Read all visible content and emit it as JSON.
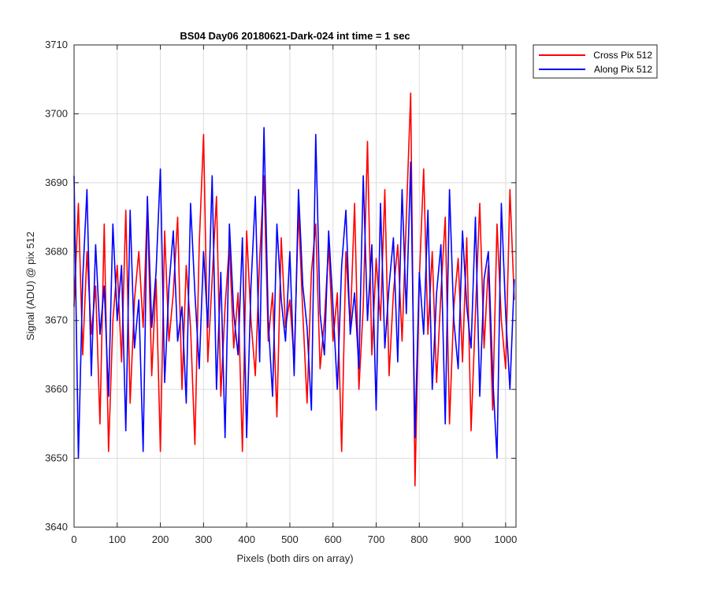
{
  "chart_data": {
    "type": "line",
    "title": "BS04 Day06 20180621-Dark-024 int time = 1 sec",
    "xlabel": "Pixels (both dirs on array)",
    "ylabel": "Signal (ADU) @ pix 512",
    "xlim": [
      0,
      1024
    ],
    "ylim": [
      3640,
      3710
    ],
    "xticks": [
      0,
      100,
      200,
      300,
      400,
      500,
      600,
      700,
      800,
      900,
      1000
    ],
    "yticks": [
      3640,
      3650,
      3660,
      3670,
      3680,
      3690,
      3700,
      3710
    ],
    "grid": true,
    "legend_position": "outside-top-right",
    "series": [
      {
        "name": "Cross Pix 512",
        "color": "#ff0000",
        "x": [
          0,
          10,
          20,
          30,
          40,
          50,
          60,
          70,
          80,
          90,
          100,
          110,
          120,
          130,
          140,
          150,
          160,
          170,
          180,
          190,
          200,
          210,
          220,
          230,
          240,
          250,
          260,
          270,
          280,
          290,
          300,
          310,
          320,
          330,
          340,
          350,
          360,
          370,
          380,
          390,
          400,
          410,
          420,
          430,
          440,
          450,
          460,
          470,
          480,
          490,
          500,
          510,
          520,
          530,
          540,
          550,
          560,
          570,
          580,
          590,
          600,
          610,
          620,
          630,
          640,
          650,
          660,
          670,
          680,
          690,
          700,
          710,
          720,
          730,
          740,
          750,
          760,
          770,
          780,
          790,
          800,
          810,
          820,
          830,
          840,
          850,
          860,
          870,
          880,
          890,
          900,
          910,
          920,
          930,
          940,
          950,
          960,
          970,
          980,
          990,
          1000,
          1010,
          1020
        ],
        "y": [
          3672,
          3687,
          3665,
          3680,
          3668,
          3675,
          3655,
          3684,
          3651,
          3670,
          3678,
          3664,
          3686,
          3658,
          3673,
          3680,
          3669,
          3687,
          3662,
          3676,
          3651,
          3683,
          3667,
          3674,
          3685,
          3660,
          3678,
          3669,
          3652,
          3681,
          3697,
          3664,
          3676,
          3688,
          3659,
          3672,
          3681,
          3666,
          3674,
          3651,
          3683,
          3670,
          3662,
          3679,
          3691,
          3667,
          3674,
          3656,
          3682,
          3669,
          3673,
          3664,
          3686,
          3671,
          3658,
          3677,
          3684,
          3663,
          3670,
          3681,
          3667,
          3674,
          3651,
          3680,
          3669,
          3687,
          3660,
          3672,
          3696,
          3665,
          3679,
          3670,
          3689,
          3662,
          3674,
          3681,
          3667,
          3685,
          3703,
          3646,
          3676,
          3692,
          3668,
          3680,
          3661,
          3674,
          3685,
          3655,
          3672,
          3679,
          3664,
          3682,
          3654,
          3671,
          3687,
          3666,
          3678,
          3657,
          3684,
          3670,
          3663,
          3689,
          3673
        ]
      },
      {
        "name": "Along Pix 512",
        "color": "#0000ff",
        "x": [
          0,
          10,
          20,
          30,
          40,
          50,
          60,
          70,
          80,
          90,
          100,
          110,
          120,
          130,
          140,
          150,
          160,
          170,
          180,
          190,
          200,
          210,
          220,
          230,
          240,
          250,
          260,
          270,
          280,
          290,
          300,
          310,
          320,
          330,
          340,
          350,
          360,
          370,
          380,
          390,
          400,
          410,
          420,
          430,
          440,
          450,
          460,
          470,
          480,
          490,
          500,
          510,
          520,
          530,
          540,
          550,
          560,
          570,
          580,
          590,
          600,
          610,
          620,
          630,
          640,
          650,
          660,
          670,
          680,
          690,
          700,
          710,
          720,
          730,
          740,
          750,
          760,
          770,
          780,
          790,
          800,
          810,
          820,
          830,
          840,
          850,
          860,
          870,
          880,
          890,
          900,
          910,
          920,
          930,
          940,
          950,
          960,
          970,
          980,
          990,
          1000,
          1010,
          1020
        ],
        "y": [
          3691,
          3650,
          3676,
          3689,
          3662,
          3681,
          3668,
          3675,
          3659,
          3684,
          3670,
          3678,
          3654,
          3686,
          3666,
          3673,
          3651,
          3688,
          3669,
          3677,
          3692,
          3661,
          3675,
          3683,
          3667,
          3672,
          3658,
          3687,
          3674,
          3663,
          3680,
          3669,
          3691,
          3660,
          3677,
          3653,
          3684,
          3671,
          3665,
          3682,
          3653,
          3675,
          3688,
          3664,
          3698,
          3670,
          3659,
          3684,
          3673,
          3667,
          3680,
          3662,
          3689,
          3675,
          3669,
          3657,
          3697,
          3671,
          3665,
          3683,
          3672,
          3660,
          3678,
          3686,
          3668,
          3674,
          3663,
          3691,
          3670,
          3681,
          3657,
          3687,
          3666,
          3675,
          3682,
          3664,
          3689,
          3671,
          3693,
          3653,
          3677,
          3668,
          3686,
          3660,
          3674,
          3681,
          3655,
          3689,
          3670,
          3663,
          3683,
          3672,
          3666,
          3685,
          3659,
          3676,
          3680,
          3662,
          3650,
          3687,
          3671,
          3660,
          3676
        ]
      }
    ]
  }
}
